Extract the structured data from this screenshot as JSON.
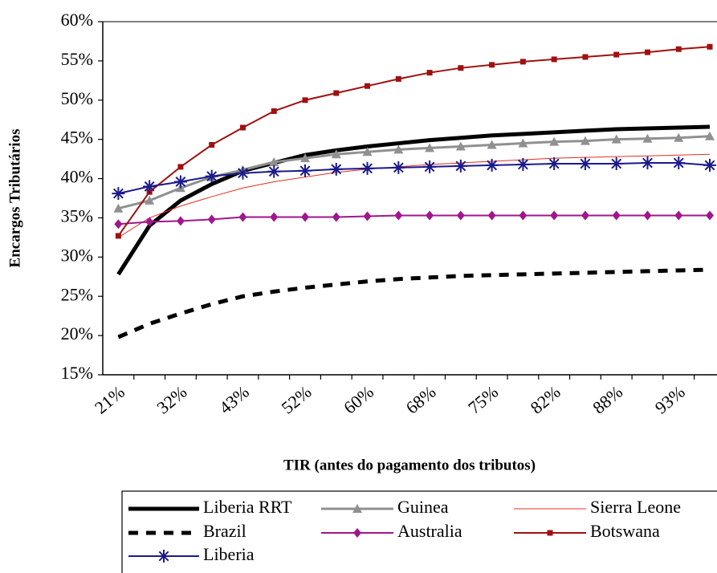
{
  "chart_data": {
    "type": "line",
    "x_label": "TIR (antes do pagamento dos tributos)",
    "y_label": "Encargos Tributários",
    "categories": [
      "21%",
      null,
      "32%",
      null,
      "43%",
      null,
      "52%",
      null,
      "60%",
      null,
      "68%",
      null,
      "75%",
      null,
      "82%",
      null,
      "88%",
      null,
      "93%",
      null
    ],
    "ylim": [
      15,
      60
    ],
    "yticks": [
      {
        "value": 15,
        "label": "15%"
      },
      {
        "value": 20,
        "label": "20%"
      },
      {
        "value": 25,
        "label": "25%"
      },
      {
        "value": 30,
        "label": "30%"
      },
      {
        "value": 35,
        "label": "35%"
      },
      {
        "value": 40,
        "label": "40%"
      },
      {
        "value": 45,
        "label": "45%"
      },
      {
        "value": 50,
        "label": "50%"
      },
      {
        "value": 55,
        "label": "55%"
      },
      {
        "value": 60,
        "label": "60%"
      }
    ],
    "legend": "bottom",
    "series": [
      {
        "name": "Liberia RRT",
        "color": "#000000",
        "width": 5,
        "marker": "none",
        "dash": "solid",
        "values": [
          27.8,
          34,
          37.2,
          39.3,
          41,
          42,
          43,
          43.6,
          44.1,
          44.5,
          44.9,
          45.2,
          45.5,
          45.7,
          45.9,
          46.1,
          46.3,
          46.4,
          46.5,
          46.6
        ]
      },
      {
        "name": "Guinea",
        "color": "#909090",
        "width": 3,
        "marker": "triangle",
        "dash": "solid",
        "values": [
          36.2,
          37.2,
          38.8,
          40.2,
          41.1,
          42.1,
          42.6,
          43.1,
          43.4,
          43.7,
          43.9,
          44.1,
          44.3,
          44.5,
          44.7,
          44.8,
          45,
          45.1,
          45.2,
          45.4
        ]
      },
      {
        "name": "Sierra Leone",
        "color": "#e03020",
        "width": 1,
        "marker": "none",
        "dash": "solid",
        "values": [
          32.5,
          35,
          36.5,
          37.7,
          38.8,
          39.6,
          40.2,
          40.8,
          41.2,
          41.5,
          41.8,
          42,
          42.2,
          42.4,
          42.6,
          42.7,
          42.8,
          42.9,
          43,
          43.1
        ]
      },
      {
        "name": "Brazil",
        "color": "#000000",
        "width": 5,
        "marker": "none",
        "dash": "dashed",
        "values": [
          19.8,
          21.5,
          22.8,
          24,
          25,
          25.6,
          26.1,
          26.5,
          26.9,
          27.2,
          27.4,
          27.6,
          27.7,
          27.8,
          27.9,
          28,
          28.1,
          28.2,
          28.3,
          28.4
        ]
      },
      {
        "name": "Australia",
        "color": "#a0168c",
        "width": 2,
        "marker": "diamond",
        "dash": "solid",
        "values": [
          34.2,
          34.5,
          34.6,
          34.8,
          35.1,
          35.1,
          35.1,
          35.1,
          35.2,
          35.3,
          35.3,
          35.3,
          35.3,
          35.3,
          35.3,
          35.3,
          35.3,
          35.3,
          35.3,
          35.3
        ]
      },
      {
        "name": "Botswana",
        "color": "#a01010",
        "width": 2,
        "marker": "square",
        "dash": "solid",
        "values": [
          32.7,
          38.3,
          41.5,
          44.3,
          46.5,
          48.6,
          50,
          50.9,
          51.8,
          52.7,
          53.5,
          54.1,
          54.5,
          54.9,
          55.2,
          55.5,
          55.8,
          56.1,
          56.5,
          56.8
        ]
      },
      {
        "name": "Liberia",
        "color": "#1a1a8c",
        "width": 2,
        "marker": "asterisk",
        "dash": "solid",
        "values": [
          38.1,
          39,
          39.6,
          40.3,
          40.7,
          40.9,
          41,
          41.2,
          41.3,
          41.4,
          41.5,
          41.6,
          41.7,
          41.8,
          41.9,
          41.9,
          41.9,
          42,
          42,
          41.7
        ]
      }
    ]
  }
}
